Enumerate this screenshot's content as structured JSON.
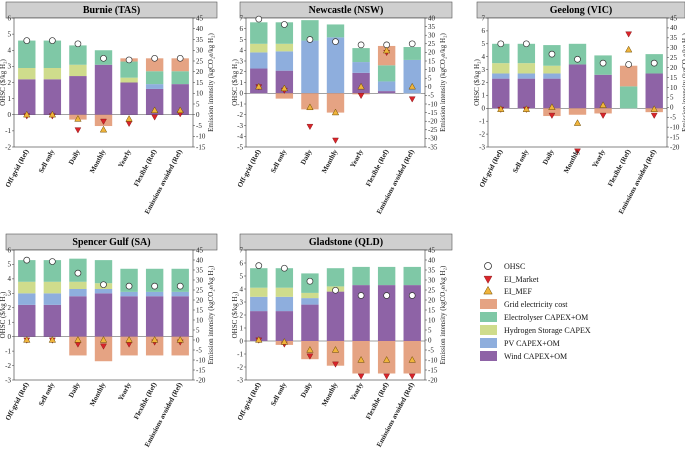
{
  "chart_data": [
    {
      "type": "bar",
      "title": "Burnie (TAS)",
      "categories": [
        "Off-grid (Ref)",
        "Sell only",
        "Daily",
        "Monthly",
        "Yearly",
        "Flexible (Ref)",
        "Emissions avoided (Ref)"
      ],
      "ylabel": "OHSC ($/kg H₂)",
      "ylabel2": "Emission intensity (kgCO₂e/kg H₂)",
      "ylim": [
        -2,
        6
      ],
      "yticks": [
        -2,
        -1,
        0,
        1,
        2,
        3,
        4,
        5,
        6
      ],
      "ylim2": [
        -15,
        45
      ],
      "yticks2": [
        -15,
        -10,
        -5,
        0,
        5,
        10,
        15,
        20,
        25,
        30,
        35,
        40,
        45
      ],
      "series": [
        {
          "name": "Wind CAPEX+OM",
          "values": [
            2.2,
            2.2,
            2.4,
            3.1,
            2.0,
            1.6,
            1.9
          ]
        },
        {
          "name": "PV CAPEX+OM",
          "values": [
            0,
            0,
            0,
            0,
            0,
            0.3,
            0
          ]
        },
        {
          "name": "Hydrogen Storage CAPEX",
          "values": [
            0.7,
            0.7,
            0.7,
            0,
            0.3,
            0,
            0
          ]
        },
        {
          "name": "Electrolyser CAPEX+OM",
          "values": [
            1.7,
            1.7,
            1.2,
            0.9,
            1.0,
            0.8,
            0.8
          ]
        },
        {
          "name": "Grid electricity cost",
          "values": [
            0,
            0,
            -0.3,
            -0.7,
            0.2,
            0.8,
            0.8
          ]
        }
      ],
      "ohsc": [
        4.6,
        4.6,
        4.4,
        3.5,
        3.4,
        3.5,
        3.5
      ],
      "ei_market": [
        -0.5,
        -0.5,
        -7,
        -3,
        -4,
        -1,
        0.5
      ],
      "ei_mef": [
        0,
        0,
        -2,
        -7,
        -2,
        2,
        2
      ]
    },
    {
      "type": "bar",
      "title": "Newcastle (NSW)",
      "categories": [
        "Off-grid (Ref)",
        "Sell only",
        "Daily",
        "Monthly",
        "Yearly",
        "Flexible (Ref)",
        "Emissions avoided (Ref)"
      ],
      "ylabel": "OHSC ($/kg H₂)",
      "ylabel2": "Emission intensity (kgCO₂e/kg H₂)",
      "ylim": [
        -5,
        7
      ],
      "yticks": [
        -5,
        -4,
        -3,
        -2,
        -1,
        0,
        1,
        2,
        3,
        4,
        5,
        6,
        7
      ],
      "ylim2": [
        -35,
        40
      ],
      "yticks2": [
        -35,
        -30,
        -25,
        -20,
        -15,
        -10,
        -5,
        0,
        5,
        10,
        15,
        20,
        25,
        30,
        35,
        40
      ],
      "series": [
        {
          "name": "Wind CAPEX+OM",
          "values": [
            2.3,
            2.1,
            0,
            0,
            1.9,
            0.2,
            0
          ]
        },
        {
          "name": "PV CAPEX+OM",
          "values": [
            1.5,
            1.8,
            4.9,
            5.2,
            1.0,
            0.9,
            3.1
          ]
        },
        {
          "name": "Hydrogen Storage CAPEX",
          "values": [
            0.8,
            0.7,
            0,
            0,
            0,
            0,
            0
          ]
        },
        {
          "name": "Electrolyser CAPEX+OM",
          "values": [
            2.0,
            2.0,
            1.9,
            1.2,
            1.3,
            1.5,
            1.2
          ]
        },
        {
          "name": "Grid electricity cost",
          "values": [
            0,
            -0.5,
            -1.5,
            -1.8,
            -0.1,
            1.8,
            0
          ]
        }
      ],
      "ohsc": [
        6.9,
        6.4,
        5.0,
        4.8,
        4.5,
        4.5,
        4.6
      ],
      "ei_market": [
        0,
        -2,
        -23,
        -31,
        -5,
        20,
        -7
      ],
      "ei_mef": [
        0,
        -1,
        -12,
        -15,
        0,
        21,
        0
      ]
    },
    {
      "type": "bar",
      "title": "Geelong (VIC)",
      "categories": [
        "Off-grid (Ref)",
        "Sell only",
        "Daily",
        "Monthly",
        "Yearly",
        "Flexible (Ref)",
        "Emissions avoided (Ref)"
      ],
      "ylabel": "OHSC ($/kg H₂)",
      "ylabel2": "Emission intensity (kgCO₂e/kg H₂)",
      "ylim": [
        -3,
        7
      ],
      "yticks": [
        -3,
        -2,
        -1,
        0,
        1,
        2,
        3,
        4,
        5,
        6,
        7
      ],
      "ylim2": [
        -20,
        45
      ],
      "yticks2": [
        -20,
        -15,
        -10,
        -5,
        0,
        5,
        10,
        15,
        20,
        25,
        30,
        35,
        40,
        45
      ],
      "series": [
        {
          "name": "Wind CAPEX+OM",
          "values": [
            2.3,
            2.3,
            2.3,
            3.4,
            2.6,
            0,
            2.7
          ]
        },
        {
          "name": "PV CAPEX+OM",
          "values": [
            0.4,
            0.4,
            0.4,
            0,
            0,
            0,
            0
          ]
        },
        {
          "name": "Hydrogen Storage CAPEX",
          "values": [
            0.8,
            0.8,
            0.6,
            0,
            0,
            0,
            0
          ]
        },
        {
          "name": "Electrolyser CAPEX+OM",
          "values": [
            1.5,
            1.5,
            1.6,
            1.6,
            1.5,
            1.7,
            1.5
          ]
        },
        {
          "name": "Grid electricity cost",
          "values": [
            0,
            0,
            -0.6,
            -0.5,
            -0.4,
            1.6,
            -0.3
          ]
        }
      ],
      "ohsc": [
        5.0,
        5.0,
        4.2,
        3.8,
        3.5,
        3.4,
        3.5
      ],
      "ei_market": [
        -1,
        -1,
        -4,
        -22,
        -4,
        37,
        -4
      ],
      "ei_mef": [
        -1,
        -1,
        0,
        -8,
        1,
        29,
        -1
      ]
    },
    {
      "type": "bar",
      "title": "Spencer Gulf (SA)",
      "categories": [
        "Off-grid (Ref)",
        "Sell only",
        "Daily",
        "Monthly",
        "Yearly",
        "Flexible (Ref)",
        "Emissions avoided (Ref)"
      ],
      "ylabel": "OHSC ($/kg H₂)",
      "ylabel2": "Emission intensity (kgCO₂e/kg H₂)",
      "ylim": [
        -3,
        6
      ],
      "yticks": [
        -3,
        -2,
        -1,
        0,
        1,
        2,
        3,
        4,
        5,
        6
      ],
      "ylim2": [
        -20,
        45
      ],
      "yticks2": [
        -20,
        -15,
        -10,
        -5,
        0,
        5,
        10,
        15,
        20,
        25,
        30,
        35,
        40,
        45
      ],
      "series": [
        {
          "name": "Wind CAPEX+OM",
          "values": [
            2.2,
            2.2,
            2.8,
            3.0,
            2.8,
            2.8,
            2.8
          ]
        },
        {
          "name": "PV CAPEX+OM",
          "values": [
            0.8,
            0.8,
            0.5,
            0.3,
            0.3,
            0.3,
            0.3
          ]
        },
        {
          "name": "Hydrogen Storage CAPEX",
          "values": [
            0.8,
            0.8,
            0.5,
            0.4,
            0,
            0,
            0
          ]
        },
        {
          "name": "Electrolyser CAPEX+OM",
          "values": [
            1.5,
            1.5,
            1.6,
            1.6,
            1.6,
            1.6,
            1.6
          ]
        },
        {
          "name": "Grid electricity cost",
          "values": [
            0,
            0,
            -1.3,
            -1.7,
            -1.3,
            -1.3,
            -1.3
          ]
        }
      ],
      "ohsc": [
        5.3,
        5.2,
        4.4,
        3.6,
        3.5,
        3.5,
        3.5
      ],
      "ei_market": [
        0,
        0,
        -2,
        -3,
        -2,
        -1,
        -1
      ],
      "ei_mef": [
        0,
        0,
        0,
        0,
        0,
        0,
        0
      ]
    },
    {
      "type": "bar",
      "title": "Gladstone (QLD)",
      "categories": [
        "Off-grid (Ref)",
        "Sell only",
        "Daily",
        "Monthly",
        "Yearly",
        "Flexible (Ref)",
        "Emissions avoided (Ref)"
      ],
      "ylabel": "OHSC ($/kg H₂)",
      "ylabel2": "Emission intensity (kgCO₂e/kg H₂)",
      "ylim": [
        -3,
        7
      ],
      "yticks": [
        -3,
        -2,
        -1,
        0,
        1,
        2,
        3,
        4,
        5,
        6,
        7
      ],
      "ylim2": [
        -20,
        45
      ],
      "yticks2": [
        -20,
        -15,
        -10,
        -5,
        0,
        5,
        10,
        15,
        20,
        25,
        30,
        35,
        40,
        45
      ],
      "series": [
        {
          "name": "Wind CAPEX+OM",
          "values": [
            2.3,
            2.3,
            2.8,
            3.8,
            4.3,
            4.3,
            4.3
          ]
        },
        {
          "name": "PV CAPEX+OM",
          "values": [
            1.1,
            1.1,
            0.5,
            0,
            0,
            0,
            0
          ]
        },
        {
          "name": "Hydrogen Storage CAPEX",
          "values": [
            0.7,
            0.7,
            0.4,
            0.4,
            0,
            0,
            0
          ]
        },
        {
          "name": "Electrolyser CAPEX+OM",
          "values": [
            1.5,
            1.5,
            1.5,
            1.4,
            1.4,
            1.4,
            1.4
          ]
        },
        {
          "name": "Grid electricity cost",
          "values": [
            0,
            -0.3,
            -1.4,
            -1.9,
            -2.5,
            -2.5,
            -2.5
          ]
        }
      ],
      "ohsc": [
        5.8,
        5.6,
        4.6,
        3.9,
        3.5,
        3.5,
        3.5
      ],
      "ei_market": [
        0,
        -2,
        -8,
        -12,
        -18,
        -18,
        -18
      ],
      "ei_mef": [
        0,
        -1,
        -5,
        -5,
        -10,
        -10,
        -10
      ]
    }
  ],
  "legend": {
    "ohsc": "OHSC",
    "ei_market": "EI_Market",
    "ei_mef": "EI_MEF",
    "grid": "Grid electricity cost",
    "electrolyser": "Electrolyser CAPEX+OM",
    "storage": "Hydrogen Storage CAPEX",
    "pv": "PV CAPEX+OM",
    "wind": "Wind CAPEX+OM"
  },
  "colors": {
    "wind": "#8e63a6",
    "pv": "#8eaedd",
    "storage": "#cfdc8c",
    "electrolyser": "#7fc8a6",
    "grid": "#e5a383",
    "market": "#d9242a",
    "mef": "#f0b43c",
    "title_bg": "#cfcfcf"
  }
}
